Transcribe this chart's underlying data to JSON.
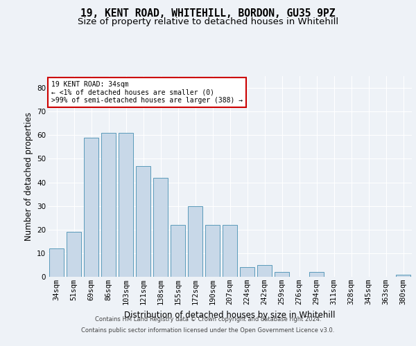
{
  "title1": "19, KENT ROAD, WHITEHILL, BORDON, GU35 9PZ",
  "title2": "Size of property relative to detached houses in Whitehill",
  "xlabel": "Distribution of detached houses by size in Whitehill",
  "ylabel": "Number of detached properties",
  "categories": [
    "34sqm",
    "51sqm",
    "69sqm",
    "86sqm",
    "103sqm",
    "121sqm",
    "138sqm",
    "155sqm",
    "172sqm",
    "190sqm",
    "207sqm",
    "224sqm",
    "242sqm",
    "259sqm",
    "276sqm",
    "294sqm",
    "311sqm",
    "328sqm",
    "345sqm",
    "363sqm",
    "380sqm"
  ],
  "values": [
    12,
    19,
    59,
    61,
    61,
    47,
    42,
    22,
    30,
    22,
    22,
    4,
    5,
    2,
    0,
    2,
    0,
    0,
    0,
    0,
    1
  ],
  "bar_face_color": "#c8d8e8",
  "bar_edge_color": "#5a9aba",
  "annotation_box_text": "19 KENT ROAD: 34sqm\n← <1% of detached houses are smaller (0)\n>99% of semi-detached houses are larger (388) →",
  "annotation_box_color": "#ffffff",
  "annotation_box_edge_color": "#cc0000",
  "footer_line1": "Contains HM Land Registry data © Crown copyright and database right 2024.",
  "footer_line2": "Contains public sector information licensed under the Open Government Licence v3.0.",
  "ylim": [
    0,
    85
  ],
  "yticks": [
    0,
    10,
    20,
    30,
    40,
    50,
    60,
    70,
    80
  ],
  "bg_color": "#eef2f7",
  "plot_bg_color": "#eef2f7",
  "grid_color": "#ffffff",
  "title1_fontsize": 10.5,
  "title2_fontsize": 9.5,
  "xlabel_fontsize": 8.5,
  "ylabel_fontsize": 8.5,
  "tick_fontsize": 7.5,
  "footer_fontsize": 6.0
}
